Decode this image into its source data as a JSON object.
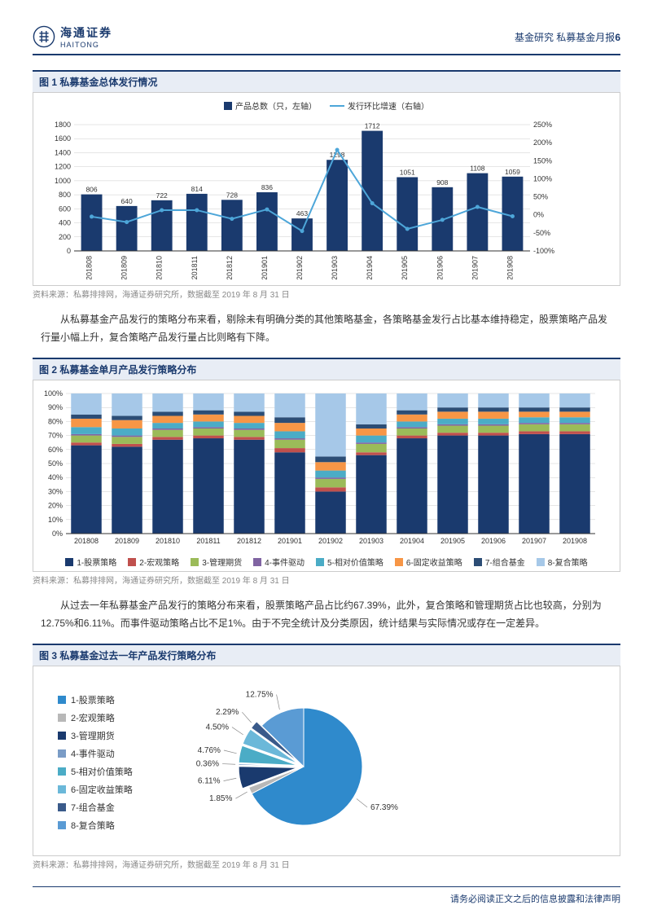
{
  "header": {
    "brand_cn": "海通证券",
    "brand_en": "HAITONG",
    "right_text": "基金研究 私募基金月报",
    "page_num": "6"
  },
  "chart1": {
    "title": "图 1  私募基金总体发行情况",
    "type": "bar+line",
    "legend": [
      {
        "label": "产品总数（只，左轴）",
        "color": "#1a3a6e",
        "kind": "bar"
      },
      {
        "label": "发行环比增速（右轴）",
        "color": "#4da6d9",
        "kind": "line"
      }
    ],
    "categories": [
      "201808",
      "201809",
      "201810",
      "201811",
      "201812",
      "201901",
      "201902",
      "201903",
      "201904",
      "201905",
      "201906",
      "201907",
      "201908"
    ],
    "bar_values": [
      806,
      640,
      722,
      814,
      728,
      836,
      463,
      1298,
      1712,
      1051,
      908,
      1108,
      1059
    ],
    "line_values_pct": [
      -5,
      -20,
      13,
      13,
      -11,
      15,
      -45,
      180,
      32,
      -39,
      -14,
      22,
      -4
    ],
    "y_left": {
      "min": 0,
      "max": 1800,
      "step": 200
    },
    "y_right": {
      "min": -100,
      "max": 250,
      "step": 50
    },
    "bar_color": "#1a3a6e",
    "line_color": "#4da6d9",
    "grid_color": "#cccccc",
    "label_fontsize": 9,
    "source": "资料来源：私募排排网，海通证券研究所，数据截至 2019 年 8 月 31 日"
  },
  "para1": "从私募基金产品发行的策略分布来看，剔除未有明确分类的其他策略基金，各策略基金发行占比基本维持稳定，股票策略产品发行量小幅上升，复合策略产品发行量占比则略有下降。",
  "chart2": {
    "title": "图 2  私募基金单月产品发行策略分布",
    "type": "stacked-bar",
    "categories": [
      "201808",
      "201809",
      "201810",
      "201811",
      "201812",
      "201901",
      "201902",
      "201903",
      "201904",
      "201905",
      "201906",
      "201907",
      "201908"
    ],
    "series": [
      {
        "label": "1-股票策略",
        "color": "#1a3a6e"
      },
      {
        "label": "2-宏观策略",
        "color": "#c0504d"
      },
      {
        "label": "3-管理期货",
        "color": "#9bbb59"
      },
      {
        "label": "4-事件驱动",
        "color": "#8064a2"
      },
      {
        "label": "5-相对价值策略",
        "color": "#4bacc6"
      },
      {
        "label": "6-固定收益策略",
        "color": "#f79646"
      },
      {
        "label": "7-组合基金",
        "color": "#2c4d75"
      },
      {
        "label": "8-复合策略",
        "color": "#a6c8e8"
      }
    ],
    "rows": [
      [
        63,
        2,
        5,
        1,
        5,
        6,
        3,
        15
      ],
      [
        62,
        2,
        5,
        1,
        5,
        6,
        3,
        16
      ],
      [
        67,
        2,
        5,
        1,
        4,
        5,
        3,
        13
      ],
      [
        68,
        2,
        5,
        1,
        4,
        5,
        3,
        12
      ],
      [
        67,
        2,
        5,
        1,
        4,
        5,
        3,
        13
      ],
      [
        58,
        3,
        6,
        1,
        5,
        6,
        4,
        17
      ],
      [
        30,
        3,
        6,
        1,
        5,
        6,
        4,
        45
      ],
      [
        56,
        2,
        6,
        1,
        5,
        5,
        3,
        22
      ],
      [
        68,
        2,
        5,
        1,
        4,
        5,
        3,
        12
      ],
      [
        70,
        2,
        5,
        1,
        4,
        5,
        3,
        10
      ],
      [
        70,
        2,
        5,
        1,
        4,
        5,
        3,
        10
      ],
      [
        71,
        2,
        5,
        1,
        4,
        4,
        3,
        10
      ],
      [
        71,
        2,
        5,
        1,
        4,
        4,
        3,
        10
      ]
    ],
    "y": {
      "min": 0,
      "max": 100,
      "step": 10,
      "suffix": "%"
    },
    "grid_color": "#cccccc",
    "label_fontsize": 9,
    "source": "资料来源：私募排排网，海通证券研究所，数据截至 2019 年 8 月 31 日"
  },
  "para2": "从过去一年私募基金产品发行的策略分布来看，股票策略产品占比约67.39%，此外，复合策略和管理期货占比也较高，分别为12.75%和6.11%。而事件驱动策略占比不足1%。由于不完全统计及分类原因，统计结果与实际情况或存在一定差异。",
  "chart3": {
    "title": "图 3  私募基金过去一年产品发行策略分布",
    "type": "pie",
    "slices": [
      {
        "label": "1-股票策略",
        "value": 67.39,
        "color": "#2f8acc"
      },
      {
        "label": "2-宏观策略",
        "value": 1.85,
        "color": "#b8b8b8"
      },
      {
        "label": "3-管理期货",
        "value": 6.11,
        "color": "#1a3a6e"
      },
      {
        "label": "4-事件驱动",
        "value": 0.36,
        "color": "#7a9cc6"
      },
      {
        "label": "5-相对价值策略",
        "value": 4.76,
        "color": "#4bacc6"
      },
      {
        "label": "6-固定收益策略",
        "value": 4.5,
        "color": "#6bb8d9"
      },
      {
        "label": "7-组合基金",
        "value": 2.29,
        "color": "#3a5a8a"
      },
      {
        "label": "8-复合策略",
        "value": 12.75,
        "color": "#5a9bd4"
      }
    ],
    "label_fontsize": 10,
    "source": "资料来源：私募排排网，海通证券研究所，数据截至 2019 年 8 月 31 日"
  },
  "footer": "请务必阅读正文之后的信息披露和法律声明"
}
